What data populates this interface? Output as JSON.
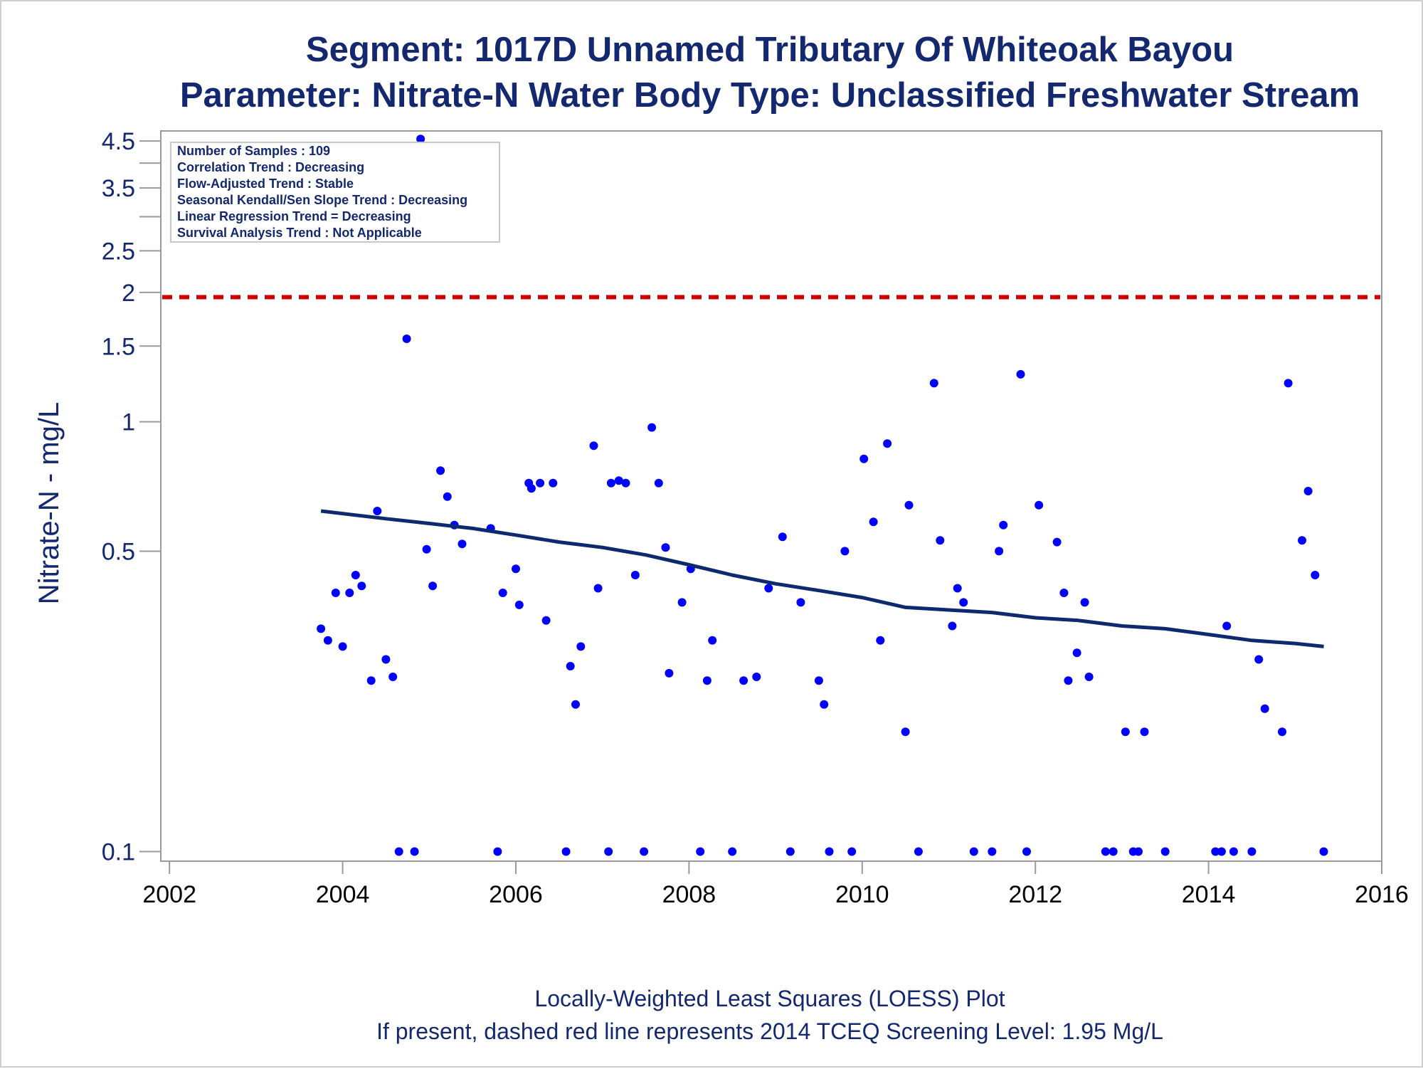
{
  "chart_data": {
    "type": "scatter",
    "title": "Segment: 1017D  Unnamed Tributary Of Whiteoak Bayou",
    "subtitle": "Parameter: Nitrate-N   Water Body Type: Unclassified Freshwater Stream",
    "ylabel": "Nitrate-N - mg/L",
    "xlabel": "",
    "y_scale": "log",
    "xlim": [
      2001.9,
      2016.0
    ],
    "ylim": [
      0.095,
      4.75
    ],
    "x_ticks": [
      2002,
      2004,
      2006,
      2008,
      2010,
      2012,
      2014,
      2016
    ],
    "y_ticks": [
      0.1,
      0.5,
      1,
      1.5,
      2,
      2.5,
      3.5,
      4.5
    ],
    "y_minor_ticks": [
      3,
      4
    ],
    "grid": false,
    "info_box": {
      "placement": "top-left",
      "lines": [
        "Number of Samples : 109",
        "Correlation Trend : Decreasing",
        "Flow-Adjusted Trend : Stable",
        "Seasonal Kendall/Sen Slope Trend : Decreasing",
        "Linear Regression Trend = Decreasing",
        "Survival Analysis Trend : Not Applicable"
      ]
    },
    "screening_level": {
      "value": 1.95,
      "color": "#cc0000",
      "style": "dashed"
    },
    "footnotes": [
      "Locally-Weighted Least Squares (LOESS) Plot",
      "If present, dashed red line represents 2014 TCEQ Screening Level: 1.95 Mg/L"
    ],
    "series": [
      {
        "kind": "points",
        "color": "#0000ff",
        "points": [
          [
            2003.75,
            0.33
          ],
          [
            2003.83,
            0.31
          ],
          [
            2003.92,
            0.4
          ],
          [
            2004.0,
            0.3
          ],
          [
            2004.08,
            0.4
          ],
          [
            2004.15,
            0.44
          ],
          [
            2004.22,
            0.415
          ],
          [
            2004.33,
            0.25
          ],
          [
            2004.4,
            0.62
          ],
          [
            2004.5,
            0.28
          ],
          [
            2004.58,
            0.255
          ],
          [
            2004.65,
            0.1
          ],
          [
            2004.74,
            1.56
          ],
          [
            2004.83,
            0.1
          ],
          [
            2004.9,
            4.55
          ],
          [
            2004.97,
            0.505
          ],
          [
            2005.04,
            0.415
          ],
          [
            2005.13,
            0.77
          ],
          [
            2005.21,
            0.67
          ],
          [
            2005.29,
            0.575
          ],
          [
            2005.38,
            0.52
          ],
          [
            2005.71,
            0.565
          ],
          [
            2005.79,
            0.1
          ],
          [
            2005.85,
            0.4
          ],
          [
            2006.0,
            0.455
          ],
          [
            2006.04,
            0.375
          ],
          [
            2006.15,
            0.72
          ],
          [
            2006.18,
            0.7
          ],
          [
            2006.28,
            0.72
          ],
          [
            2006.35,
            0.345
          ],
          [
            2006.43,
            0.72
          ],
          [
            2006.58,
            0.1
          ],
          [
            2006.63,
            0.27
          ],
          [
            2006.69,
            0.22
          ],
          [
            2006.75,
            0.3
          ],
          [
            2006.9,
            0.88
          ],
          [
            2006.95,
            0.41
          ],
          [
            2007.07,
            0.1
          ],
          [
            2007.1,
            0.72
          ],
          [
            2007.19,
            0.73
          ],
          [
            2007.27,
            0.72
          ],
          [
            2007.38,
            0.44
          ],
          [
            2007.48,
            0.1
          ],
          [
            2007.57,
            0.97
          ],
          [
            2007.65,
            0.72
          ],
          [
            2007.73,
            0.51
          ],
          [
            2007.77,
            0.26
          ],
          [
            2007.92,
            0.38
          ],
          [
            2008.02,
            0.455
          ],
          [
            2008.13,
            0.1
          ],
          [
            2008.21,
            0.25
          ],
          [
            2008.27,
            0.31
          ],
          [
            2008.5,
            0.1
          ],
          [
            2008.63,
            0.25
          ],
          [
            2008.78,
            0.255
          ],
          [
            2008.92,
            0.41
          ],
          [
            2009.08,
            0.54
          ],
          [
            2009.17,
            0.1
          ],
          [
            2009.29,
            0.38
          ],
          [
            2009.5,
            0.25
          ],
          [
            2009.56,
            0.22
          ],
          [
            2009.62,
            0.1
          ],
          [
            2009.8,
            0.5
          ],
          [
            2009.88,
            0.1
          ],
          [
            2010.02,
            0.82
          ],
          [
            2010.13,
            0.585
          ],
          [
            2010.21,
            0.31
          ],
          [
            2010.29,
            0.89
          ],
          [
            2010.5,
            0.19
          ],
          [
            2010.54,
            0.64
          ],
          [
            2010.65,
            0.1
          ],
          [
            2010.83,
            1.23
          ],
          [
            2010.9,
            0.53
          ],
          [
            2011.04,
            0.335
          ],
          [
            2011.1,
            0.41
          ],
          [
            2011.17,
            0.38
          ],
          [
            2011.29,
            0.1
          ],
          [
            2011.5,
            0.1
          ],
          [
            2011.58,
            0.5
          ],
          [
            2011.63,
            0.575
          ],
          [
            2011.83,
            1.29
          ],
          [
            2011.9,
            0.1
          ],
          [
            2012.04,
            0.64
          ],
          [
            2012.25,
            0.525
          ],
          [
            2012.33,
            0.4
          ],
          [
            2012.38,
            0.25
          ],
          [
            2012.48,
            0.29
          ],
          [
            2012.57,
            0.38
          ],
          [
            2012.62,
            0.255
          ],
          [
            2012.81,
            0.1
          ],
          [
            2012.9,
            0.1
          ],
          [
            2013.04,
            0.19
          ],
          [
            2013.13,
            0.1
          ],
          [
            2013.19,
            0.1
          ],
          [
            2013.26,
            0.19
          ],
          [
            2013.5,
            0.1
          ],
          [
            2014.08,
            0.1
          ],
          [
            2014.15,
            0.1
          ],
          [
            2014.21,
            0.335
          ],
          [
            2014.29,
            0.1
          ],
          [
            2014.5,
            0.1
          ],
          [
            2014.58,
            0.28
          ],
          [
            2014.65,
            0.215
          ],
          [
            2014.85,
            0.19
          ],
          [
            2014.92,
            1.23
          ],
          [
            2015.08,
            0.53
          ],
          [
            2015.15,
            0.69
          ],
          [
            2015.23,
            0.44
          ],
          [
            2015.33,
            0.1
          ]
        ]
      },
      {
        "kind": "line",
        "color": "#0d2a6e",
        "points": [
          [
            2003.75,
            0.62
          ],
          [
            2004.5,
            0.595
          ],
          [
            2005.0,
            0.58
          ],
          [
            2005.5,
            0.565
          ],
          [
            2006.0,
            0.545
          ],
          [
            2006.5,
            0.525
          ],
          [
            2007.0,
            0.51
          ],
          [
            2007.5,
            0.49
          ],
          [
            2008.0,
            0.465
          ],
          [
            2008.5,
            0.44
          ],
          [
            2009.0,
            0.42
          ],
          [
            2009.5,
            0.405
          ],
          [
            2010.0,
            0.39
          ],
          [
            2010.5,
            0.37
          ],
          [
            2011.0,
            0.365
          ],
          [
            2011.5,
            0.36
          ],
          [
            2012.0,
            0.35
          ],
          [
            2012.5,
            0.345
          ],
          [
            2013.0,
            0.335
          ],
          [
            2013.5,
            0.33
          ],
          [
            2014.0,
            0.32
          ],
          [
            2014.5,
            0.31
          ],
          [
            2015.0,
            0.305
          ],
          [
            2015.33,
            0.3
          ]
        ]
      }
    ]
  }
}
